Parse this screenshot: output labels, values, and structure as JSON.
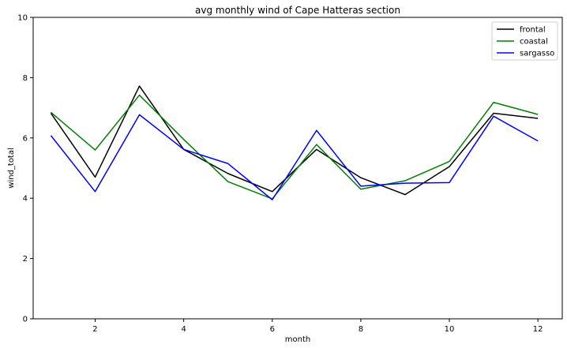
{
  "chart_data": {
    "type": "line",
    "title": "avg monthly wind of Cape Hatteras section",
    "xlabel": "month",
    "ylabel": "wind_total",
    "xlim": [
      0.6,
      12.55
    ],
    "ylim": [
      0,
      10
    ],
    "xticks": [
      2,
      4,
      6,
      8,
      10,
      12
    ],
    "yticks": [
      0,
      2,
      4,
      6,
      8,
      10
    ],
    "grid": false,
    "legend_position": "top-right",
    "x": [
      1,
      2,
      3,
      4,
      5,
      6,
      7,
      8,
      9,
      10,
      11,
      12
    ],
    "series": [
      {
        "name": "frontal",
        "color": "#000000",
        "values": [
          6.82,
          4.7,
          7.72,
          5.62,
          4.82,
          4.22,
          5.62,
          4.68,
          4.12,
          5.05,
          6.82,
          6.65
        ]
      },
      {
        "name": "coastal",
        "color": "#008000",
        "values": [
          6.85,
          5.6,
          7.42,
          5.95,
          4.55,
          3.98,
          5.78,
          4.3,
          4.58,
          5.22,
          7.18,
          6.78
        ]
      },
      {
        "name": "sargasso",
        "color": "#0000ff",
        "values": [
          6.08,
          4.22,
          6.77,
          5.62,
          5.15,
          3.95,
          6.25,
          4.4,
          4.5,
          4.52,
          6.72,
          5.9
        ]
      }
    ]
  }
}
